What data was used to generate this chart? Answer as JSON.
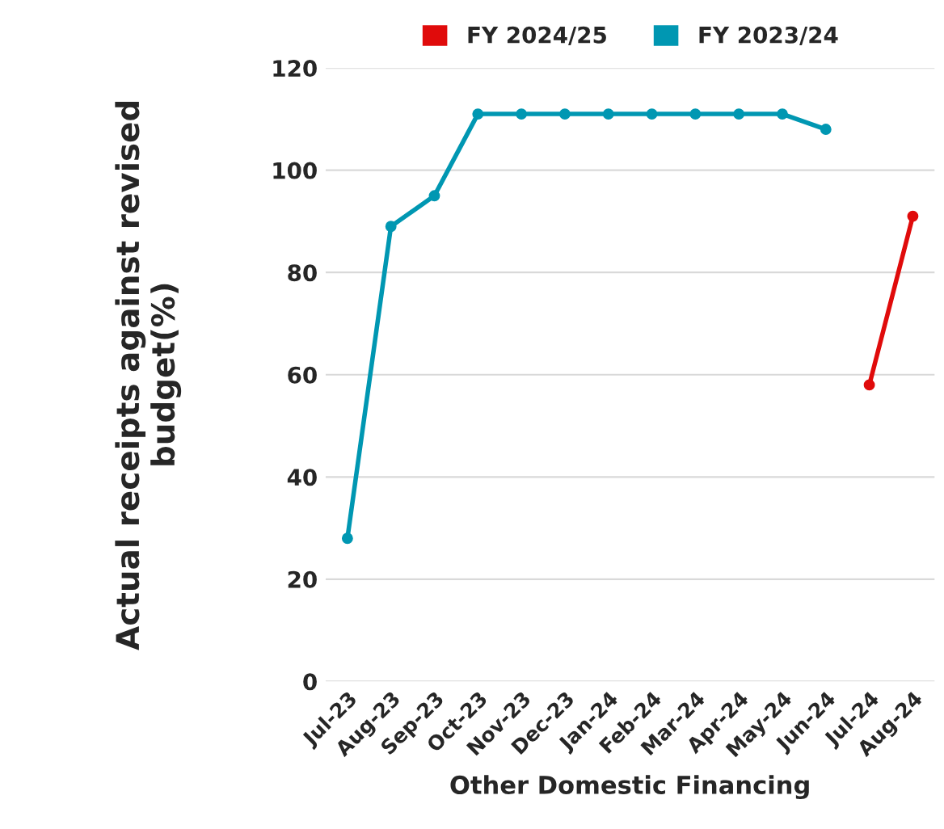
{
  "chart_data": {
    "type": "line",
    "xlabel": "Other Domestic Financing",
    "ylabel": "Actual receipts against revised\nbudget(%)",
    "categories": [
      "Jul-23",
      "Aug-23",
      "Sep-23",
      "Oct-23",
      "Nov-23",
      "Dec-23",
      "Jan-24",
      "Feb-24",
      "Mar-24",
      "Apr-24",
      "May-24",
      "Jun-24",
      "Jul-24",
      "Aug-24"
    ],
    "series": [
      {
        "name": "FY 2024/25",
        "color": "#e00b0b",
        "values": [
          null,
          null,
          null,
          null,
          null,
          null,
          null,
          null,
          null,
          null,
          null,
          null,
          58,
          91
        ]
      },
      {
        "name": "FY 2023/24",
        "color": "#0097b2",
        "values": [
          28,
          89,
          95,
          111,
          111,
          111,
          111,
          111,
          111,
          111,
          111,
          108,
          null,
          null
        ]
      }
    ],
    "ylim": [
      0,
      120
    ],
    "yticks": [
      0,
      20,
      40,
      60,
      80,
      100,
      120
    ],
    "grid": "y",
    "legend": "top",
    "marker": "circle",
    "line_style": "solid"
  }
}
